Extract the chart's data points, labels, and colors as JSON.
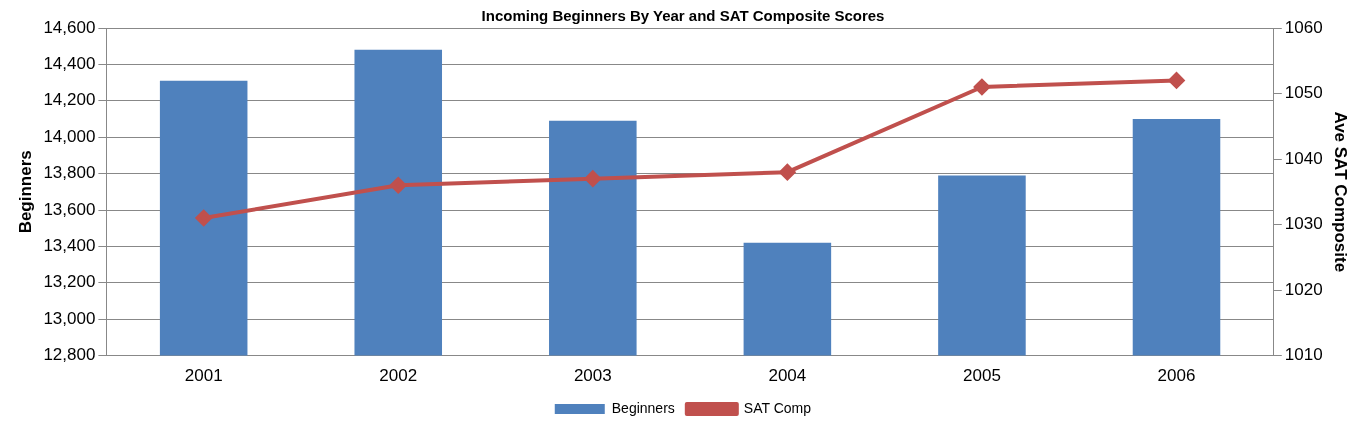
{
  "chart_data": {
    "type": "bar",
    "title": "Incoming Beginners By Year and SAT Composite Scores",
    "ylabel": "Beginners",
    "y2label": "Ave SAT Composite",
    "categories": [
      "2001",
      "2002",
      "2003",
      "2004",
      "2005",
      "2006"
    ],
    "series": [
      {
        "name": "Beginners",
        "color": "#4f81bd",
        "values": [
          14310,
          14480,
          14090,
          13420,
          13790,
          14100
        ]
      },
      {
        "name": "SAT Comp",
        "type": "line",
        "axis": "y2",
        "color": "#c0504d",
        "marker": "diamond",
        "values": [
          1031,
          1036,
          1037,
          1038,
          1051,
          1052
        ]
      }
    ],
    "ylim": [
      12800,
      14600
    ],
    "yticks": [
      {
        "value": 12800,
        "label": "12,800"
      },
      {
        "value": 13000,
        "label": "13,000"
      },
      {
        "value": 13200,
        "label": "13,200"
      },
      {
        "value": 13400,
        "label": "13,400"
      },
      {
        "value": 13600,
        "label": "13,600"
      },
      {
        "value": 13800,
        "label": "13,800"
      },
      {
        "value": 14000,
        "label": "14,000"
      },
      {
        "value": 14200,
        "label": "14,200"
      },
      {
        "value": 14400,
        "label": "14,400"
      },
      {
        "value": 14600,
        "label": "14,600"
      }
    ],
    "y2lim": [
      1010,
      1060
    ],
    "y2ticks": [
      1010,
      1020,
      1030,
      1040,
      1050,
      1060
    ],
    "grid": "y",
    "legend": "bottom"
  }
}
